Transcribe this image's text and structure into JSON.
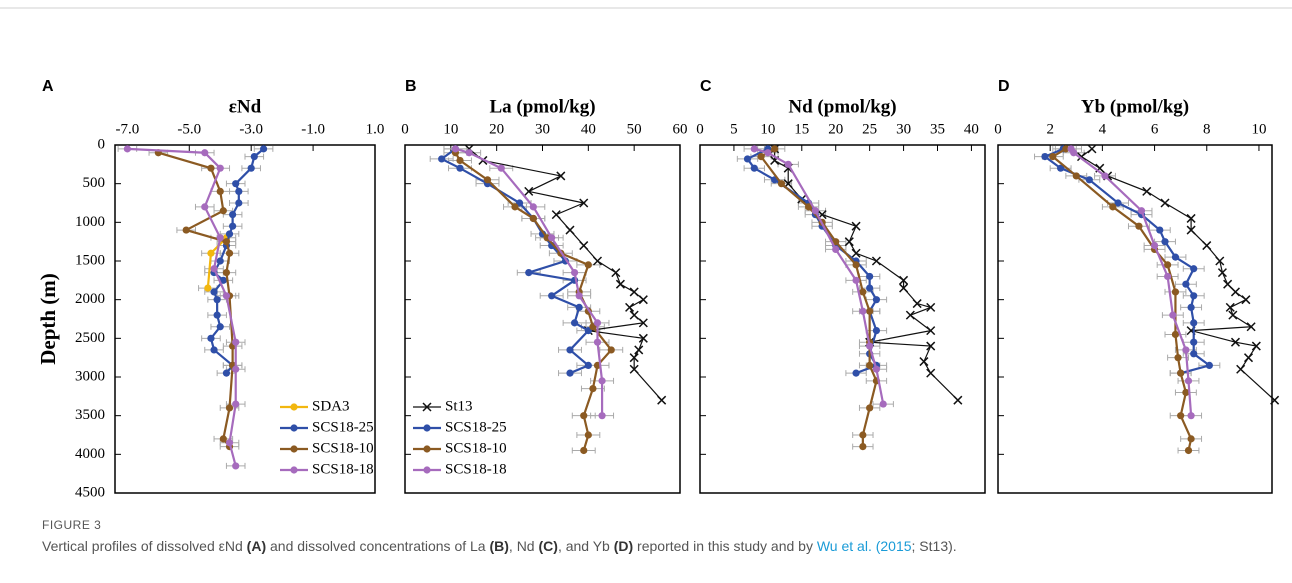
{
  "chart_data": [
    {
      "type": "line",
      "panel": "A",
      "title": "εNd",
      "ylabel": "Depth (m)",
      "ytick_labels": true,
      "legend": "lower right",
      "xlim": [
        -7.4,
        1.0
      ],
      "xticks": [
        {
          "value": -7,
          "label": "-7.0"
        },
        {
          "value": -5,
          "label": "-5.0"
        },
        {
          "value": -3,
          "label": "-3.0"
        },
        {
          "value": -1,
          "label": "-1.0"
        },
        {
          "value": 1,
          "label": "1.0"
        }
      ],
      "ylim": [
        0,
        4500
      ],
      "yticks": [
        0,
        500,
        1000,
        1500,
        2000,
        2500,
        3000,
        3500,
        4000,
        4500
      ],
      "series": [
        {
          "name": "SDA3",
          "color": "#f2b70f",
          "marker": "circle",
          "xerr": 0.3,
          "x": [
            -3.8,
            -4.3,
            -4.4
          ],
          "y": [
            1200,
            1400,
            1850
          ]
        },
        {
          "name": "SCS18-25",
          "color": "#2f4fa8",
          "marker": "circle",
          "xerr": 0.3,
          "x": [
            -2.6,
            -2.9,
            -3.0,
            -3.5,
            -3.4,
            -3.4,
            -3.6,
            -3.6,
            -3.7,
            -3.8,
            -4.0,
            -4.2,
            -3.9,
            -4.2,
            -4.1,
            -4.1,
            -4.0,
            -4.3,
            -4.2,
            -3.6,
            -3.8
          ],
          "y": [
            50,
            150,
            300,
            500,
            600,
            750,
            900,
            1050,
            1150,
            1300,
            1500,
            1650,
            1750,
            1900,
            2000,
            2200,
            2350,
            2500,
            2650,
            2850,
            2950
          ]
        },
        {
          "name": "SCS18-10",
          "color": "#8b5a22",
          "marker": "circle",
          "xerr": 0.3,
          "x": [
            -6.0,
            -4.3,
            -4.0,
            -3.9,
            -5.1,
            -3.8,
            -3.7,
            -3.8,
            -3.7,
            -3.6,
            -3.6,
            -3.7,
            -3.9,
            -3.7
          ],
          "y": [
            100,
            300,
            600,
            850,
            1100,
            1250,
            1400,
            1650,
            1950,
            2600,
            2850,
            3400,
            3800,
            3900
          ]
        },
        {
          "name": "SCS18-18",
          "color": "#a66bbd",
          "marker": "circle",
          "xerr": 0.3,
          "x": [
            -7.0,
            -4.5,
            -4.0,
            -4.5,
            -4.0,
            -4.2,
            -3.8,
            -3.5,
            -3.5,
            -3.5,
            -3.7,
            -3.5
          ],
          "y": [
            50,
            100,
            300,
            800,
            1200,
            1600,
            1950,
            2550,
            2900,
            3350,
            3850,
            4150
          ]
        }
      ]
    },
    {
      "type": "line",
      "panel": "B",
      "title": "La (pmol/kg)",
      "ytick_labels": false,
      "legend": "lower left",
      "xlim": [
        0,
        60
      ],
      "xticks": [
        0,
        10,
        20,
        30,
        40,
        50,
        60
      ],
      "ylim": [
        0,
        4500
      ],
      "yticks": [
        0,
        500,
        1000,
        1500,
        2000,
        2500,
        3000,
        3500,
        4000,
        4500
      ],
      "series": [
        {
          "name": "St13",
          "color": "#111111",
          "marker": "x",
          "x": [
            14,
            17,
            34,
            27,
            39,
            33,
            36,
            39,
            42,
            46,
            47,
            50,
            52,
            49,
            50,
            52,
            40,
            52,
            51,
            50,
            50,
            56
          ],
          "y": [
            50,
            200,
            400,
            600,
            750,
            900,
            1100,
            1300,
            1500,
            1650,
            1800,
            1900,
            2000,
            2100,
            2200,
            2300,
            2400,
            2500,
            2650,
            2750,
            2900,
            3300
          ]
        },
        {
          "name": "SCS18-25",
          "color": "#2f4fa8",
          "marker": "circle",
          "xerr": 2.5,
          "x": [
            11,
            8,
            12,
            18,
            25,
            28,
            30,
            32,
            35,
            27,
            37,
            32,
            38,
            37,
            40,
            36,
            40,
            36
          ],
          "y": [
            50,
            180,
            300,
            500,
            750,
            950,
            1150,
            1300,
            1500,
            1650,
            1750,
            1950,
            2100,
            2300,
            2400,
            2650,
            2850,
            2950
          ]
        },
        {
          "name": "SCS18-10",
          "color": "#8b5a22",
          "marker": "circle",
          "xerr": 2.5,
          "x": [
            11,
            12,
            18,
            24,
            28,
            31,
            34,
            40,
            38,
            40,
            41,
            45,
            42,
            41,
            39,
            40,
            39
          ],
          "y": [
            100,
            200,
            450,
            800,
            950,
            1200,
            1400,
            1550,
            1900,
            2150,
            2350,
            2650,
            2850,
            3150,
            3500,
            3750,
            3950
          ]
        },
        {
          "name": "SCS18-18",
          "color": "#a66bbd",
          "marker": "circle",
          "xerr": 2.5,
          "x": [
            11,
            14,
            21,
            28,
            32,
            37,
            38,
            42,
            42,
            43,
            43
          ],
          "y": [
            50,
            100,
            300,
            800,
            1200,
            1650,
            1950,
            2300,
            2550,
            3050,
            3500
          ]
        }
      ]
    },
    {
      "type": "line",
      "panel": "C",
      "title": "Nd (pmol/kg)",
      "ytick_labels": false,
      "xlim": [
        0,
        42
      ],
      "xticks": [
        0,
        5,
        10,
        15,
        20,
        25,
        30,
        35,
        40
      ],
      "ylim": [
        0,
        4500
      ],
      "yticks": [
        0,
        500,
        1000,
        1500,
        2000,
        2500,
        3000,
        3500,
        4000,
        4500
      ],
      "series": [
        {
          "name": "St13",
          "color": "#111111",
          "marker": "x",
          "x": [
            11,
            11,
            13,
            13,
            15,
            18,
            23,
            22,
            23,
            26,
            30,
            30,
            32,
            34,
            31,
            34,
            25,
            34,
            33,
            34,
            38
          ],
          "y": [
            50,
            200,
            300,
            500,
            700,
            900,
            1050,
            1250,
            1400,
            1500,
            1750,
            1850,
            2050,
            2100,
            2200,
            2400,
            2550,
            2600,
            2800,
            2950,
            3300
          ]
        },
        {
          "name": "SCS18-25",
          "color": "#2f4fa8",
          "marker": "circle",
          "xerr": 1.5,
          "x": [
            10,
            7,
            8,
            11,
            16,
            17,
            18,
            20,
            23,
            25,
            25,
            26,
            25,
            26,
            25,
            26,
            23
          ],
          "y": [
            50,
            180,
            300,
            450,
            750,
            900,
            1050,
            1300,
            1500,
            1700,
            1850,
            2000,
            2150,
            2400,
            2700,
            2850,
            2950
          ]
        },
        {
          "name": "SCS18-10",
          "color": "#8b5a22",
          "marker": "circle",
          "xerr": 1.5,
          "x": [
            11,
            9,
            12,
            16,
            18,
            20,
            23,
            24,
            25,
            25,
            25,
            26,
            25,
            24,
            24
          ],
          "y": [
            50,
            150,
            500,
            800,
            1000,
            1250,
            1550,
            1900,
            2150,
            2550,
            2850,
            3050,
            3400,
            3750,
            3900
          ]
        },
        {
          "name": "SCS18-18",
          "color": "#a66bbd",
          "marker": "circle",
          "xerr": 1.5,
          "x": [
            8,
            10,
            13,
            17,
            20,
            23,
            24,
            25,
            26,
            27
          ],
          "y": [
            50,
            100,
            250,
            850,
            1350,
            1750,
            2150,
            2600,
            2900,
            3350
          ]
        }
      ]
    },
    {
      "type": "line",
      "panel": "D",
      "title": "Yb (pmol/kg)",
      "ytick_labels": false,
      "xlim": [
        0,
        10.5
      ],
      "xticks": [
        0,
        2,
        4,
        6,
        8,
        10
      ],
      "ylim": [
        0,
        4500
      ],
      "yticks": [
        0,
        500,
        1000,
        1500,
        2000,
        2500,
        3000,
        3500,
        4000,
        4500
      ],
      "series": [
        {
          "name": "St13",
          "color": "#111111",
          "marker": "x",
          "x": [
            3.6,
            3.2,
            3.9,
            4.2,
            5.7,
            6.4,
            7.4,
            7.4,
            8.0,
            8.5,
            8.6,
            8.8,
            9.1,
            9.5,
            8.9,
            9.0,
            9.7,
            7.4,
            9.1,
            9.9,
            9.6,
            9.3,
            10.6
          ],
          "y": [
            50,
            150,
            300,
            400,
            600,
            750,
            950,
            1100,
            1300,
            1500,
            1650,
            1800,
            1900,
            2000,
            2100,
            2200,
            2350,
            2400,
            2550,
            2600,
            2750,
            2900,
            3300
          ]
        },
        {
          "name": "SCS18-25",
          "color": "#2f4fa8",
          "marker": "circle",
          "xerr": 0.4,
          "x": [
            2.5,
            1.8,
            2.4,
            3.5,
            4.6,
            5.5,
            6.2,
            6.4,
            6.8,
            7.5,
            7.2,
            7.5,
            7.4,
            7.5,
            7.5,
            7.5,
            8.1,
            7.0
          ],
          "y": [
            50,
            150,
            300,
            450,
            750,
            900,
            1100,
            1250,
            1450,
            1600,
            1800,
            1950,
            2100,
            2300,
            2550,
            2700,
            2850,
            2950
          ]
        },
        {
          "name": "SCS18-10",
          "color": "#8b5a22",
          "marker": "circle",
          "xerr": 0.4,
          "x": [
            2.6,
            2.1,
            3.0,
            4.4,
            5.4,
            6.0,
            6.5,
            6.8,
            6.8,
            6.9,
            7.0,
            7.2,
            7.0,
            7.4,
            7.3
          ],
          "y": [
            50,
            150,
            400,
            800,
            1050,
            1350,
            1550,
            1900,
            2450,
            2750,
            2950,
            3200,
            3500,
            3800,
            3950
          ]
        },
        {
          "name": "SCS18-18",
          "color": "#a66bbd",
          "marker": "circle",
          "xerr": 0.4,
          "x": [
            2.8,
            2.9,
            4.1,
            5.5,
            6.0,
            6.5,
            6.7,
            7.2,
            7.3,
            7.4
          ],
          "y": [
            50,
            100,
            400,
            850,
            1300,
            1700,
            2200,
            2650,
            3050,
            3500
          ]
        }
      ]
    }
  ],
  "caption": {
    "label": "FIGURE 3",
    "parts": [
      "Vertical profiles of dissolved εNd ",
      "(A)",
      " and dissolved concentrations of La ",
      "(B)",
      ", Nd ",
      "(C)",
      ", and Yb ",
      "(D)",
      " reported in this study and by ",
      "Wu et al. (2015",
      "; St13)."
    ]
  }
}
